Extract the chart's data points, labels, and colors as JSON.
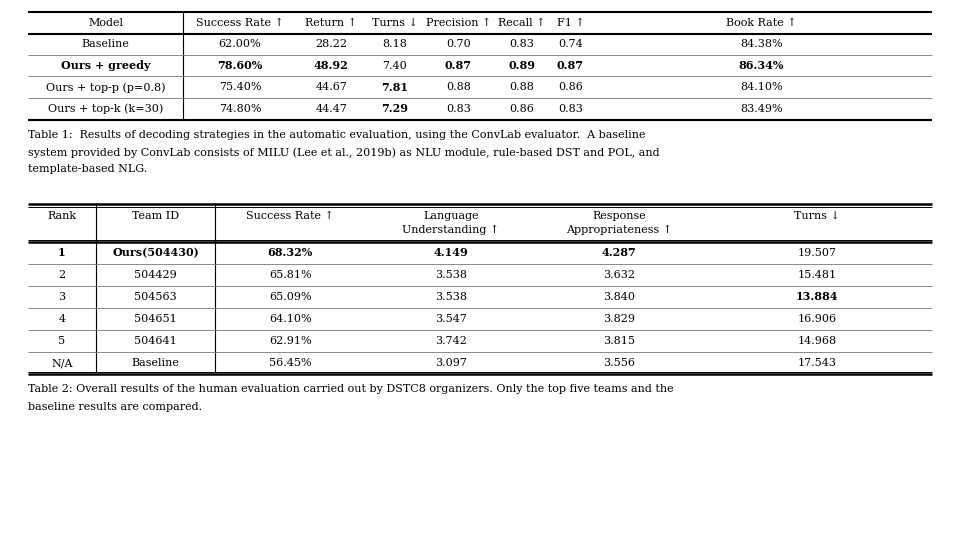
{
  "table1_headers": [
    "Model",
    "Success Rate ↑",
    "Return ↑",
    "Turns ↓",
    "Precision ↑",
    "Recall ↑",
    "F1 ↑",
    "Book Rate ↑"
  ],
  "table1_rows": [
    [
      "Baseline",
      "62.00%",
      "28.22",
      "8.18",
      "0.70",
      "0.83",
      "0.74",
      "84.38%"
    ],
    [
      "Ours + greedy",
      "78.60%",
      "48.92",
      "7.40",
      "0.87",
      "0.89",
      "0.87",
      "86.34%"
    ],
    [
      "Ours + top-p (p=0.8)",
      "75.40%",
      "44.67",
      "7.81",
      "0.88",
      "0.88",
      "0.86",
      "84.10%"
    ],
    [
      "Ours + top-k (k=30)",
      "74.80%",
      "44.47",
      "7.29",
      "0.83",
      "0.86",
      "0.83",
      "83.49%"
    ]
  ],
  "table1_bold_row": 1,
  "table1_bold_cols_in_row1": [
    0,
    1,
    2,
    4,
    5,
    6,
    7
  ],
  "table1_bold_individual": [
    [
      2,
      3
    ],
    [
      3,
      3
    ]
  ],
  "caption1_lines": [
    "Table 1:  Results of decoding strategies in the automatic evaluation, using the ConvLab evaluator.  A baseline",
    "system provided by ConvLab consists of MILU (Lee et al., 2019b) as NLU module, rule-based DST and POL, and",
    "template-based NLG."
  ],
  "table2_header_line1": [
    "Rank",
    "Team ID",
    "Success Rate ↑",
    "Language",
    "Response",
    "Turns ↓"
  ],
  "table2_header_line2": [
    "",
    "",
    "",
    "Understanding ↑",
    "Appropriateness ↑",
    ""
  ],
  "table2_rows": [
    [
      "1",
      "Ours(504430)",
      "68.32%",
      "4.149",
      "4.287",
      "19.507"
    ],
    [
      "2",
      "504429",
      "65.81%",
      "3.538",
      "3.632",
      "15.481"
    ],
    [
      "3",
      "504563",
      "65.09%",
      "3.538",
      "3.840",
      "13.884"
    ],
    [
      "4",
      "504651",
      "64.10%",
      "3.547",
      "3.829",
      "16.906"
    ],
    [
      "5",
      "504641",
      "62.91%",
      "3.742",
      "3.815",
      "14.968"
    ],
    [
      "N/A",
      "Baseline",
      "56.45%",
      "3.097",
      "3.556",
      "17.543"
    ]
  ],
  "table2_bold_row": 0,
  "table2_bold_cols_in_row0": [
    0,
    1,
    2,
    3,
    4
  ],
  "table2_bold_individual": [
    [
      2,
      5
    ]
  ],
  "caption2_lines": [
    "Table 2: Overall results of the human evaluation carried out by DSTC8 organizers. Only the top five teams and the",
    "baseline results are compared."
  ],
  "bg_color": "#ffffff",
  "text_color": "#000000"
}
